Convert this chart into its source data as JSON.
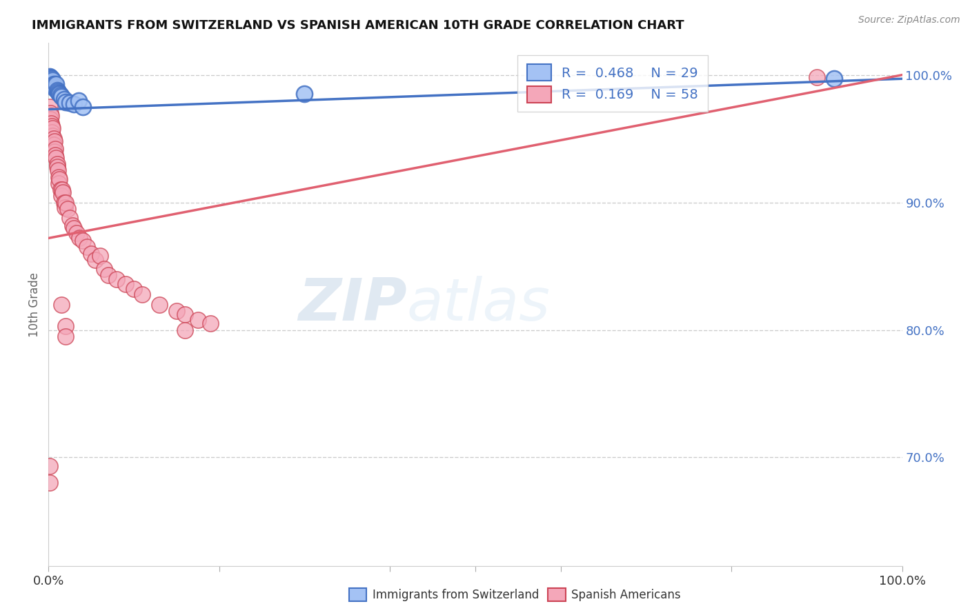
{
  "title": "IMMIGRANTS FROM SWITZERLAND VS SPANISH AMERICAN 10TH GRADE CORRELATION CHART",
  "source": "Source: ZipAtlas.com",
  "ylabel": "10th Grade",
  "xlim": [
    0.0,
    1.0
  ],
  "ylim": [
    0.615,
    1.025
  ],
  "yticks": [
    0.7,
    0.8,
    0.9,
    1.0
  ],
  "ytick_labels": [
    "70.0%",
    "80.0%",
    "90.0%",
    "100.0%"
  ],
  "blue_color": "#a4c2f4",
  "pink_color": "#f4a7b9",
  "blue_edge_color": "#4472c4",
  "pink_edge_color": "#cc4455",
  "blue_line_color": "#4472c4",
  "pink_line_color": "#e06070",
  "watermark_zip": "ZIP",
  "watermark_atlas": "atlas",
  "blue_points_x": [
    0.001,
    0.002,
    0.003,
    0.003,
    0.004,
    0.004,
    0.005,
    0.005,
    0.006,
    0.006,
    0.007,
    0.007,
    0.008,
    0.009,
    0.01,
    0.011,
    0.012,
    0.013,
    0.014,
    0.015,
    0.018,
    0.02,
    0.025,
    0.03,
    0.035,
    0.04,
    0.3,
    0.92
  ],
  "blue_points_y": [
    0.999,
    0.998,
    0.997,
    0.996,
    0.997,
    0.995,
    0.994,
    0.996,
    0.993,
    0.992,
    0.991,
    0.99,
    0.989,
    0.993,
    0.988,
    0.987,
    0.986,
    0.985,
    0.984,
    0.983,
    0.981,
    0.979,
    0.978,
    0.977,
    0.98,
    0.975,
    0.985,
    0.997
  ],
  "pink_points_x": [
    0.001,
    0.002,
    0.002,
    0.003,
    0.003,
    0.004,
    0.004,
    0.005,
    0.005,
    0.006,
    0.006,
    0.007,
    0.007,
    0.008,
    0.008,
    0.009,
    0.01,
    0.01,
    0.011,
    0.012,
    0.012,
    0.013,
    0.014,
    0.015,
    0.016,
    0.017,
    0.018,
    0.019,
    0.02,
    0.022,
    0.025,
    0.028,
    0.03,
    0.033,
    0.036,
    0.04,
    0.045,
    0.05,
    0.055,
    0.06,
    0.065,
    0.07,
    0.08,
    0.09,
    0.1,
    0.11,
    0.13,
    0.15,
    0.16,
    0.175,
    0.19,
    0.02,
    0.16,
    0.9,
    0.001,
    0.001,
    0.015,
    0.02
  ],
  "pink_points_y": [
    0.975,
    0.97,
    0.965,
    0.968,
    0.962,
    0.96,
    0.955,
    0.952,
    0.958,
    0.95,
    0.945,
    0.948,
    0.94,
    0.942,
    0.937,
    0.935,
    0.93,
    0.928,
    0.925,
    0.92,
    0.915,
    0.918,
    0.91,
    0.905,
    0.91,
    0.908,
    0.9,
    0.896,
    0.9,
    0.895,
    0.888,
    0.882,
    0.88,
    0.876,
    0.872,
    0.87,
    0.865,
    0.86,
    0.855,
    0.858,
    0.848,
    0.843,
    0.84,
    0.836,
    0.832,
    0.828,
    0.82,
    0.815,
    0.812,
    0.808,
    0.805,
    0.803,
    0.8,
    0.998,
    0.693,
    0.68,
    0.82,
    0.795
  ],
  "blue_trend_x": [
    0.0,
    1.0
  ],
  "blue_trend_y": [
    0.973,
    0.997
  ],
  "pink_trend_x": [
    0.0,
    1.0
  ],
  "pink_trend_y": [
    0.872,
    1.0
  ]
}
